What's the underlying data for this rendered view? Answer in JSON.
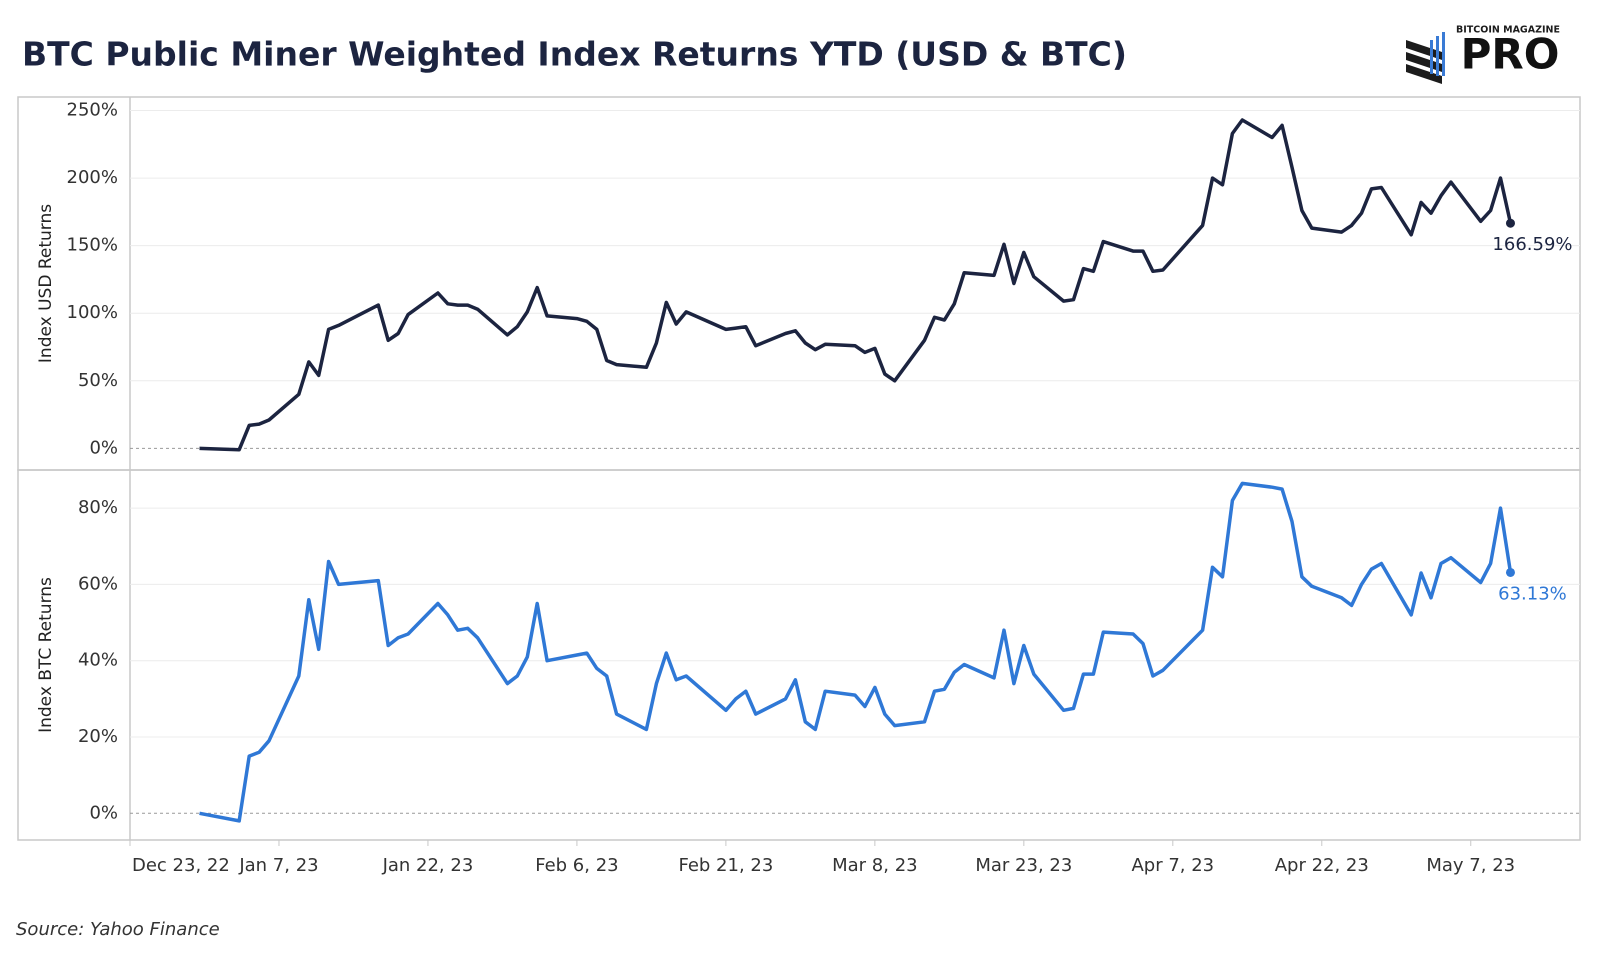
{
  "chart_data": [
    {
      "type": "line",
      "title": "BTC Public Miner Weighted Index Returns YTD (USD & BTC)",
      "ylabel": "Index USD Returns",
      "x": [
        "2022-12-30",
        "2023-01-03",
        "2023-01-04",
        "2023-01-05",
        "2023-01-06",
        "2023-01-09",
        "2023-01-10",
        "2023-01-11",
        "2023-01-12",
        "2023-01-13",
        "2023-01-17",
        "2023-01-18",
        "2023-01-19",
        "2023-01-20",
        "2023-01-23",
        "2023-01-24",
        "2023-01-25",
        "2023-01-26",
        "2023-01-27",
        "2023-01-30",
        "2023-01-31",
        "2023-02-01",
        "2023-02-02",
        "2023-02-03",
        "2023-02-06",
        "2023-02-07",
        "2023-02-08",
        "2023-02-09",
        "2023-02-10",
        "2023-02-13",
        "2023-02-14",
        "2023-02-15",
        "2023-02-16",
        "2023-02-17",
        "2023-02-21",
        "2023-02-22",
        "2023-02-23",
        "2023-02-24",
        "2023-02-27",
        "2023-02-28",
        "2023-03-01",
        "2023-03-02",
        "2023-03-03",
        "2023-03-06",
        "2023-03-07",
        "2023-03-08",
        "2023-03-09",
        "2023-03-10",
        "2023-03-13",
        "2023-03-14",
        "2023-03-15",
        "2023-03-16",
        "2023-03-17",
        "2023-03-20",
        "2023-03-21",
        "2023-03-22",
        "2023-03-23",
        "2023-03-24",
        "2023-03-27",
        "2023-03-28",
        "2023-03-29",
        "2023-03-30",
        "2023-03-31",
        "2023-04-03",
        "2023-04-04",
        "2023-04-05",
        "2023-04-06",
        "2023-04-10",
        "2023-04-11",
        "2023-04-12",
        "2023-04-13",
        "2023-04-14",
        "2023-04-17",
        "2023-04-18",
        "2023-04-19",
        "2023-04-20",
        "2023-04-21",
        "2023-04-24",
        "2023-04-25",
        "2023-04-26",
        "2023-04-27",
        "2023-04-28",
        "2023-05-01",
        "2023-05-02",
        "2023-05-03",
        "2023-05-04",
        "2023-05-05",
        "2023-05-08",
        "2023-05-09",
        "2023-05-10",
        "2023-05-11"
      ],
      "xlim": [
        "2022-12-23",
        "2023-05-18"
      ],
      "series": [
        {
          "name": "Index USD Returns",
          "color": "#1c2440",
          "values": [
            0,
            -1,
            17,
            18,
            21,
            40,
            64,
            54,
            88,
            91,
            106,
            80,
            85,
            99,
            115,
            107,
            106,
            106,
            103,
            84,
            90,
            101,
            119,
            98,
            96,
            94,
            88,
            65,
            62,
            60,
            78,
            108,
            92,
            101,
            88,
            89,
            90,
            76,
            85,
            87,
            78,
            73,
            77,
            76,
            71,
            74,
            55,
            50,
            80,
            97,
            95,
            107,
            130,
            128,
            151,
            122,
            145,
            127,
            109,
            110,
            133,
            131,
            153,
            146,
            146,
            131,
            132,
            165,
            200,
            195,
            233,
            243,
            230,
            239,
            208,
            176,
            163,
            160,
            165,
            174,
            192,
            193,
            158,
            182,
            174,
            187,
            197,
            168,
            176,
            200,
            166.59
          ],
          "value_labels": [
            null,
            null,
            null,
            null,
            null,
            null,
            null,
            null,
            null,
            null,
            null,
            null,
            null,
            null,
            null,
            null,
            null,
            null,
            null,
            null,
            null,
            null,
            null,
            null,
            null,
            null,
            null,
            null,
            null,
            null,
            null,
            null,
            null,
            null,
            null,
            null,
            null,
            null,
            null,
            null,
            null,
            null,
            null,
            null,
            null,
            null,
            null,
            null,
            null,
            null,
            null,
            null,
            null,
            null,
            null,
            null,
            null,
            null,
            null,
            null,
            null,
            null,
            null,
            null,
            null,
            null,
            null,
            null,
            null,
            null,
            null,
            null,
            null,
            null,
            null,
            null,
            null,
            null,
            null,
            null,
            null,
            null,
            null,
            null,
            null,
            null,
            null,
            null,
            null,
            null,
            "166.59%"
          ]
        }
      ],
      "ylim": [
        -16,
        260
      ],
      "yticks": [
        {
          "value": 0,
          "label": "0%"
        },
        {
          "value": 50,
          "label": "50%"
        },
        {
          "value": 100,
          "label": "100%"
        },
        {
          "value": 150,
          "label": "150%"
        },
        {
          "value": 200,
          "label": "200%"
        },
        {
          "value": 250,
          "label": "250%"
        }
      ],
      "grid": true
    },
    {
      "type": "line",
      "ylabel": "Index BTC Returns",
      "x": [
        "2022-12-30",
        "2023-01-03",
        "2023-01-04",
        "2023-01-05",
        "2023-01-06",
        "2023-01-09",
        "2023-01-10",
        "2023-01-11",
        "2023-01-12",
        "2023-01-13",
        "2023-01-17",
        "2023-01-18",
        "2023-01-19",
        "2023-01-20",
        "2023-01-23",
        "2023-01-24",
        "2023-01-25",
        "2023-01-26",
        "2023-01-27",
        "2023-01-30",
        "2023-01-31",
        "2023-02-01",
        "2023-02-02",
        "2023-02-03",
        "2023-02-06",
        "2023-02-07",
        "2023-02-08",
        "2023-02-09",
        "2023-02-10",
        "2023-02-13",
        "2023-02-14",
        "2023-02-15",
        "2023-02-16",
        "2023-02-17",
        "2023-02-21",
        "2023-02-22",
        "2023-02-23",
        "2023-02-24",
        "2023-02-27",
        "2023-02-28",
        "2023-03-01",
        "2023-03-02",
        "2023-03-03",
        "2023-03-06",
        "2023-03-07",
        "2023-03-08",
        "2023-03-09",
        "2023-03-10",
        "2023-03-13",
        "2023-03-14",
        "2023-03-15",
        "2023-03-16",
        "2023-03-17",
        "2023-03-20",
        "2023-03-21",
        "2023-03-22",
        "2023-03-23",
        "2023-03-24",
        "2023-03-27",
        "2023-03-28",
        "2023-03-29",
        "2023-03-30",
        "2023-03-31",
        "2023-04-03",
        "2023-04-04",
        "2023-04-05",
        "2023-04-06",
        "2023-04-10",
        "2023-04-11",
        "2023-04-12",
        "2023-04-13",
        "2023-04-14",
        "2023-04-17",
        "2023-04-18",
        "2023-04-19",
        "2023-04-20",
        "2023-04-21",
        "2023-04-24",
        "2023-04-25",
        "2023-04-26",
        "2023-04-27",
        "2023-04-28",
        "2023-05-01",
        "2023-05-02",
        "2023-05-03",
        "2023-05-04",
        "2023-05-05",
        "2023-05-08",
        "2023-05-09",
        "2023-05-10",
        "2023-05-11"
      ],
      "xlim": [
        "2022-12-23",
        "2023-05-18"
      ],
      "xticks": [
        {
          "value": "2022-12-23",
          "label": "Dec 23, 22"
        },
        {
          "value": "2023-01-07",
          "label": "Jan 7, 23"
        },
        {
          "value": "2023-01-22",
          "label": "Jan 22, 23"
        },
        {
          "value": "2023-02-06",
          "label": "Feb 6, 23"
        },
        {
          "value": "2023-02-21",
          "label": "Feb 21, 23"
        },
        {
          "value": "2023-03-08",
          "label": "Mar 8, 23"
        },
        {
          "value": "2023-03-23",
          "label": "Mar 23, 23"
        },
        {
          "value": "2023-04-07",
          "label": "Apr 7, 23"
        },
        {
          "value": "2023-04-22",
          "label": "Apr 22, 23"
        },
        {
          "value": "2023-05-07",
          "label": "May 7, 23"
        }
      ],
      "series": [
        {
          "name": "Index BTC Returns",
          "color": "#2f78d6",
          "values": [
            0,
            -2,
            15,
            16,
            19,
            36,
            56,
            43,
            66,
            60,
            61,
            44,
            46,
            47,
            55,
            52,
            48,
            48.5,
            46,
            34,
            36,
            41,
            55,
            40,
            41.5,
            42,
            38,
            36,
            26,
            22,
            34,
            42,
            35,
            36,
            27,
            30,
            32,
            26,
            30,
            35,
            24,
            22,
            32,
            31,
            28,
            33,
            26,
            23,
            24,
            32,
            32.5,
            37,
            39,
            35.5,
            48,
            34,
            44,
            36.5,
            27,
            27.5,
            36.5,
            36.5,
            47.5,
            47,
            44.5,
            36,
            37.5,
            48,
            64.5,
            62,
            82,
            86.5,
            85.5,
            85,
            76.5,
            62,
            59.5,
            56.5,
            54.5,
            60,
            64,
            65.5,
            52,
            63,
            56.5,
            65.5,
            67,
            60.5,
            65.5,
            80,
            63.13
          ],
          "value_labels": [
            null,
            null,
            null,
            null,
            null,
            null,
            null,
            null,
            null,
            null,
            null,
            null,
            null,
            null,
            null,
            null,
            null,
            null,
            null,
            null,
            null,
            null,
            null,
            null,
            null,
            null,
            null,
            null,
            null,
            null,
            null,
            null,
            null,
            null,
            null,
            null,
            null,
            null,
            null,
            null,
            null,
            null,
            null,
            null,
            null,
            null,
            null,
            null,
            null,
            null,
            null,
            null,
            null,
            null,
            null,
            null,
            null,
            null,
            null,
            null,
            null,
            null,
            null,
            null,
            null,
            null,
            null,
            null,
            null,
            null,
            null,
            null,
            null,
            null,
            null,
            null,
            null,
            null,
            null,
            null,
            null,
            null,
            null,
            null,
            null,
            null,
            null,
            null,
            null,
            null,
            "63.13%"
          ]
        }
      ],
      "ylim": [
        -7,
        90
      ],
      "yticks": [
        {
          "value": 0,
          "label": "0%"
        },
        {
          "value": 20,
          "label": "20%"
        },
        {
          "value": 40,
          "label": "40%"
        },
        {
          "value": 60,
          "label": "60%"
        },
        {
          "value": 80,
          "label": "80%"
        }
      ],
      "grid": true
    }
  ],
  "source": "Source: Yahoo Finance",
  "logo": {
    "small": "BITCOIN MAGAZINE",
    "big": "PRO"
  }
}
